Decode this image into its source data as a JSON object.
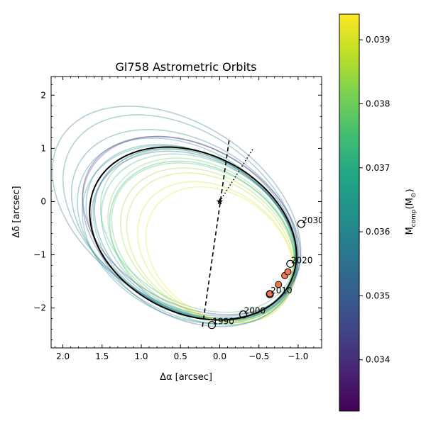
{
  "chart_data": {
    "type": "line",
    "title": "Gl758 Astrometric Orbits",
    "xlabel": "Δα [arcsec]",
    "ylabel": "Δδ [arcsec]",
    "xlim": [
      2.15,
      -1.3
    ],
    "ylim": [
      -2.75,
      2.35
    ],
    "x_inverted": true,
    "x_ticks": [
      2.0,
      1.5,
      1.0,
      0.5,
      0.0,
      -0.5,
      -1.0
    ],
    "x_tick_labels": [
      "2.0",
      "1.5",
      "1.0",
      "0.5",
      "0.0",
      "−0.5",
      "−1.0"
    ],
    "y_ticks": [
      2,
      1,
      0,
      -1,
      -2
    ],
    "y_tick_labels": [
      "2",
      "1",
      "0",
      "−1",
      "−2"
    ],
    "minor_ticks": true,
    "grid": false,
    "host_star": {
      "x": 0.0,
      "y": 0.0,
      "marker": "star"
    },
    "best_fit_orbit": {
      "color": "#000000",
      "center": [
        0.34,
        -0.6
      ],
      "semi_axes": [
        1.22,
        1.7
      ],
      "rotation_deg": -25
    },
    "node_line": {
      "from": [
        0.22,
        -2.35
      ],
      "to": [
        -0.12,
        1.15
      ],
      "style": "dashed"
    },
    "periastron_line": {
      "from": [
        0.0,
        0.0
      ],
      "to": [
        -0.42,
        0.98
      ],
      "style": "dotted"
    },
    "epoch_markers": [
      {
        "label": "1990",
        "x": 0.1,
        "y": -2.32
      },
      {
        "label": "2000",
        "x": -0.3,
        "y": -2.12
      },
      {
        "label": "2010",
        "x": -0.64,
        "y": -1.74
      },
      {
        "label": "2020",
        "x": -0.9,
        "y": -1.17
      },
      {
        "label": "2030",
        "x": -1.04,
        "y": -0.42
      }
    ],
    "observations": [
      {
        "x": -0.64,
        "y": -1.73
      },
      {
        "x": -0.75,
        "y": -1.56
      },
      {
        "x": -0.83,
        "y": -1.39
      },
      {
        "x": -0.87,
        "y": -1.32
      }
    ],
    "sample_orbits": [
      {
        "cx": 0.55,
        "cy": -0.18,
        "a": 1.35,
        "b": 2.14,
        "rot": -30,
        "mass": 0.0355
      },
      {
        "cx": 0.5,
        "cy": -0.28,
        "a": 1.3,
        "b": 2.05,
        "rot": -28,
        "mass": 0.0358
      },
      {
        "cx": 0.42,
        "cy": -0.55,
        "a": 1.25,
        "b": 1.85,
        "rot": -27,
        "mass": 0.0362
      },
      {
        "cx": 0.38,
        "cy": -0.5,
        "a": 1.24,
        "b": 1.82,
        "rot": -26,
        "mass": 0.0345
      },
      {
        "cx": 0.36,
        "cy": -0.45,
        "a": 1.22,
        "b": 1.8,
        "rot": -30,
        "mass": 0.034
      },
      {
        "cx": 0.4,
        "cy": -0.62,
        "a": 1.25,
        "b": 1.75,
        "rot": -25,
        "mass": 0.0366
      },
      {
        "cx": 0.3,
        "cy": -0.62,
        "a": 1.18,
        "b": 1.7,
        "rot": -26,
        "mass": 0.0352
      },
      {
        "cx": 0.32,
        "cy": -0.6,
        "a": 1.2,
        "b": 1.68,
        "rot": -24,
        "mass": 0.0368
      },
      {
        "cx": 0.26,
        "cy": -0.66,
        "a": 1.15,
        "b": 1.63,
        "rot": -25,
        "mass": 0.0372
      },
      {
        "cx": 0.28,
        "cy": -0.55,
        "a": 1.12,
        "b": 1.62,
        "rot": -27,
        "mass": 0.0374
      },
      {
        "cx": 0.2,
        "cy": -0.75,
        "a": 1.08,
        "b": 1.55,
        "rot": -25,
        "mass": 0.0378
      },
      {
        "cx": 0.24,
        "cy": -0.7,
        "a": 1.1,
        "b": 1.58,
        "rot": -23,
        "mass": 0.038
      },
      {
        "cx": 0.15,
        "cy": -0.8,
        "a": 1.02,
        "b": 1.5,
        "rot": -24,
        "mass": 0.0384
      },
      {
        "cx": 0.12,
        "cy": -0.85,
        "a": 0.98,
        "b": 1.45,
        "rot": -23,
        "mass": 0.0387
      },
      {
        "cx": 0.05,
        "cy": -0.95,
        "a": 0.92,
        "b": 1.38,
        "rot": -22,
        "mass": 0.039
      },
      {
        "cx": 0.0,
        "cy": -1.0,
        "a": 0.88,
        "b": 1.32,
        "rot": -20,
        "mass": 0.0392
      },
      {
        "cx": 0.36,
        "cy": -0.58,
        "a": 1.2,
        "b": 1.76,
        "rot": -28,
        "mass": 0.036
      },
      {
        "cx": 0.32,
        "cy": -0.7,
        "a": 1.22,
        "b": 1.72,
        "rot": -24,
        "mass": 0.0348
      },
      {
        "cx": 0.44,
        "cy": -0.42,
        "a": 1.28,
        "b": 1.9,
        "rot": -29,
        "mass": 0.0357
      },
      {
        "cx": 0.22,
        "cy": -0.78,
        "a": 1.1,
        "b": 1.6,
        "rot": -22,
        "mass": 0.037
      }
    ],
    "colorbar": {
      "label": "M_comp(M_☉)",
      "label_main": "M",
      "label_sub": "comp",
      "label_tail": "(M",
      "label_sun": "⊙",
      "label_end": ")",
      "min": 0.0332,
      "max": 0.0394,
      "ticks": [
        0.034,
        0.035,
        0.036,
        0.037,
        0.038,
        0.039
      ],
      "tick_labels": [
        "0.034",
        "0.035",
        "0.036",
        "0.037",
        "0.038",
        "0.039"
      ],
      "colormap": "viridis"
    }
  }
}
